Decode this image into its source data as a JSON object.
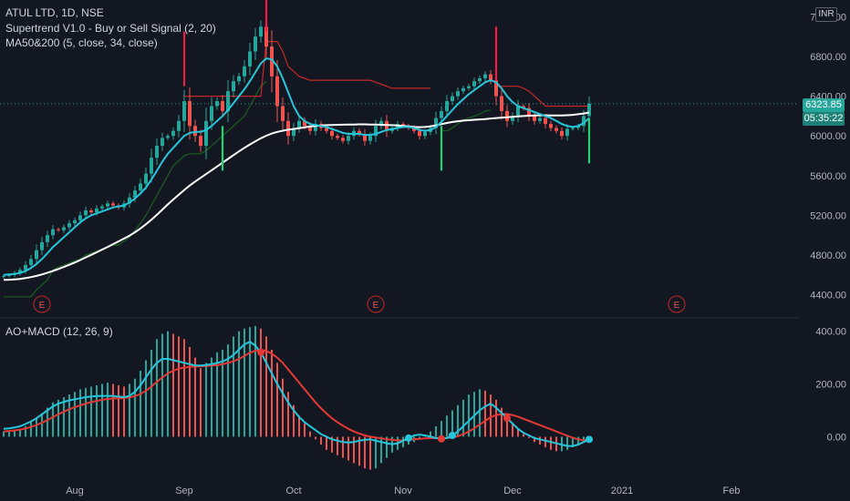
{
  "header": {
    "symbol": "ATUL LTD, 1D, NSE",
    "indicator1": "Supertrend V1.0 - Buy or Sell Signal (2, 20)",
    "indicator2": "MA50&200 (5, close, 34, close)",
    "currency": "INR"
  },
  "lower_pane": {
    "indicator": "AO+MACD (12, 26, 9)"
  },
  "price_tags": {
    "last_price": "6323.85",
    "countdown": "05:35:22"
  },
  "colors": {
    "background": "#131722",
    "up": "#26a69a",
    "down": "#ef5350",
    "ma_fast": "#26c6da",
    "ma_slow": "#ffffff",
    "supertrend_up": "#1b5e20",
    "supertrend_down": "#c62828",
    "signal_buy": "#00e676",
    "signal_sell": "#ff1744"
  },
  "chart_data": [
    {
      "type": "candlestick",
      "x_labels": [
        "Aug",
        "Sep",
        "Oct",
        "Nov",
        "Dec",
        "2021",
        "Feb"
      ],
      "y_ticks": [
        4400,
        4800,
        5200,
        5600,
        6000,
        6400,
        6800,
        7200
      ],
      "ylim": [
        4250,
        7350
      ],
      "earnings_markers": [
        "E",
        "E",
        "E"
      ],
      "grid": false,
      "series": [
        {
          "name": "close",
          "values": [
            4590,
            4600,
            4620,
            4650,
            4700,
            4760,
            4850,
            4930,
            5000,
            5060,
            5050,
            5080,
            5120,
            5150,
            5200,
            5250,
            5230,
            5270,
            5290,
            5320,
            5300,
            5280,
            5320,
            5380,
            5450,
            5520,
            5620,
            5780,
            5900,
            5980,
            6000,
            6050,
            6150,
            6350,
            6100,
            6000,
            5900,
            6150,
            6300,
            6350,
            6250,
            6450,
            6550,
            6600,
            6700,
            6850,
            7000,
            7100,
            6900,
            6600,
            6300,
            6150,
            6000,
            6080,
            6150,
            6100,
            6050,
            6120,
            6080,
            6050,
            6000,
            5980,
            5950,
            6000,
            6050,
            6020,
            5950,
            6000,
            6100,
            6150,
            6050,
            6080,
            6120,
            6100,
            6080,
            6050,
            6000,
            6040,
            6080,
            6180,
            6250,
            6350,
            6400,
            6450,
            6480,
            6500,
            6550,
            6580,
            6620,
            6560,
            6400,
            6250,
            6150,
            6200,
            6300,
            6280,
            6200,
            6150,
            6180,
            6120,
            6080,
            6050,
            6000,
            6070,
            6080,
            6100,
            6200,
            6323.85
          ]
        },
        {
          "name": "MA50",
          "values": [
            4600,
            4605,
            4610,
            4620,
            4640,
            4670,
            4710,
            4760,
            4820,
            4880,
            4930,
            4980,
            5030,
            5080,
            5130,
            5170,
            5200,
            5220,
            5240,
            5260,
            5280,
            5290,
            5300,
            5330,
            5370,
            5420,
            5480,
            5560,
            5650,
            5740,
            5820,
            5880,
            5940,
            6000,
            6030,
            6040,
            6040,
            6060,
            6100,
            6150,
            6200,
            6260,
            6330,
            6400,
            6470,
            6550,
            6640,
            6730,
            6780,
            6770,
            6700,
            6580,
            6440,
            6300,
            6200,
            6150,
            6120,
            6110,
            6100,
            6090,
            6070,
            6050,
            6030,
            6020,
            6020,
            6020,
            6010,
            6010,
            6020,
            6040,
            6060,
            6070,
            6080,
            6090,
            6090,
            6080,
            6060,
            6050,
            6060,
            6090,
            6140,
            6200,
            6260,
            6320,
            6370,
            6420,
            6460,
            6500,
            6540,
            6560,
            6540,
            6480,
            6400,
            6340,
            6300,
            6280,
            6260,
            6240,
            6220,
            6200,
            6180,
            6150,
            6120,
            6100,
            6090,
            6100,
            6130,
            6180
          ]
        },
        {
          "name": "MA200",
          "values": [
            4550,
            4552,
            4555,
            4560,
            4568,
            4578,
            4590,
            4605,
            4622,
            4640,
            4660,
            4680,
            4702,
            4725,
            4750,
            4776,
            4802,
            4828,
            4855,
            4882,
            4910,
            4938,
            4966,
            4996,
            5030,
            5068,
            5110,
            5156,
            5206,
            5258,
            5310,
            5360,
            5408,
            5455,
            5500,
            5540,
            5578,
            5616,
            5654,
            5692,
            5730,
            5768,
            5806,
            5844,
            5880,
            5914,
            5946,
            5976,
            6002,
            6024,
            6040,
            6052,
            6062,
            6070,
            6078,
            6086,
            6094,
            6100,
            6105,
            6108,
            6110,
            6112,
            6113,
            6114,
            6115,
            6116,
            6116,
            6115,
            6114,
            6112,
            6110,
            6108,
            6105,
            6100,
            6095,
            6090,
            6088,
            6090,
            6096,
            6106,
            6118,
            6130,
            6140,
            6148,
            6154,
            6158,
            6162,
            6166,
            6170,
            6175,
            6180,
            6184,
            6188,
            6192,
            6196,
            6200,
            6204,
            6206,
            6207,
            6207,
            6206,
            6205,
            6205,
            6208,
            6212,
            6218,
            6226,
            6236
          ]
        },
        {
          "name": "supertrend_lower",
          "values": [
            4380,
            4380,
            4380,
            4380,
            4380,
            4380,
            4450,
            4500,
            4550,
            4650,
            4680,
            4700,
            4720,
            4740,
            4760,
            4800,
            4820,
            4840,
            4860,
            4880,
            4900,
            4900,
            4940,
            4980,
            5050,
            5120,
            5200,
            5300,
            5400,
            5500,
            5600,
            5700,
            5750,
            5800,
            5820,
            5820,
            5820,
            5850,
            5900,
            5950,
            6000,
            6050,
            6100,
            6150,
            6200,
            6300,
            6400,
            6500,
            6550,
            null,
            null,
            null,
            null,
            null,
            null,
            null,
            null,
            null,
            null,
            null,
            null,
            null,
            null,
            null,
            null,
            null,
            null,
            null,
            null,
            null,
            null,
            null,
            null,
            null,
            null,
            null,
            null,
            null,
            null,
            null,
            6050,
            6050,
            6080,
            6120,
            6160,
            6180,
            6200,
            6220,
            6250,
            6260,
            null,
            null,
            null,
            null,
            null,
            null,
            null,
            null,
            null,
            null,
            null,
            null,
            null,
            null,
            null,
            null,
            null,
            null
          ]
        },
        {
          "name": "supertrend_upper",
          "values": [
            null,
            null,
            null,
            null,
            null,
            null,
            null,
            null,
            null,
            null,
            null,
            null,
            null,
            null,
            null,
            null,
            null,
            null,
            null,
            null,
            null,
            null,
            null,
            null,
            null,
            null,
            null,
            null,
            null,
            null,
            null,
            null,
            null,
            6400,
            6400,
            6400,
            6400,
            6400,
            6400,
            6400,
            6400,
            6400,
            6400,
            6400,
            6400,
            6400,
            6400,
            6400,
            6950,
            6950,
            6950,
            6850,
            6700,
            6650,
            6600,
            6580,
            6560,
            6560,
            6560,
            6560,
            6560,
            6560,
            6560,
            6560,
            6560,
            6560,
            6560,
            6560,
            6540,
            6520,
            6500,
            6480,
            6480,
            6480,
            6480,
            6480,
            6480,
            6480,
            6480,
            null,
            null,
            null,
            null,
            null,
            null,
            null,
            null,
            null,
            null,
            null,
            6500,
            6500,
            6500,
            6500,
            6500,
            6480,
            6450,
            6400,
            6350,
            6300,
            6300,
            6300,
            6300,
            6300,
            6300,
            6300,
            6300,
            6300
          ]
        }
      ],
      "signals": [
        {
          "type": "sell",
          "index": 33
        },
        {
          "type": "buy",
          "index": 40
        },
        {
          "type": "sell",
          "index": 48
        },
        {
          "type": "buy",
          "index": 80
        },
        {
          "type": "sell",
          "index": 90
        },
        {
          "type": "buy",
          "index": 107
        }
      ]
    },
    {
      "type": "bar+line",
      "y_ticks": [
        0,
        200,
        400
      ],
      "ylim": [
        -140,
        440
      ],
      "series": [
        {
          "name": "AO",
          "values": [
            20,
            22,
            25,
            30,
            40,
            55,
            70,
            90,
            110,
            130,
            140,
            150,
            160,
            170,
            180,
            185,
            190,
            195,
            200,
            205,
            200,
            195,
            190,
            200,
            220,
            250,
            290,
            330,
            370,
            390,
            400,
            390,
            380,
            370,
            340,
            300,
            260,
            280,
            300,
            320,
            330,
            350,
            380,
            400,
            410,
            415,
            420,
            410,
            380,
            330,
            280,
            220,
            170,
            120,
            80,
            50,
            20,
            -10,
            -30,
            -50,
            -60,
            -70,
            -80,
            -90,
            -100,
            -110,
            -120,
            -125,
            -120,
            -100,
            -80,
            -60,
            -50,
            -40,
            -30,
            -20,
            -10,
            5,
            20,
            40,
            60,
            80,
            100,
            120,
            140,
            160,
            170,
            180,
            175,
            160,
            140,
            110,
            80,
            50,
            30,
            10,
            -5,
            -20,
            -30,
            -40,
            -50,
            -55,
            -55,
            -50,
            -40,
            -30,
            -15,
            0
          ]
        },
        {
          "name": "MACD",
          "values": [
            30,
            32,
            35,
            40,
            48,
            58,
            70,
            85,
            100,
            115,
            125,
            132,
            138,
            142,
            146,
            150,
            152,
            154,
            155,
            155,
            154,
            152,
            150,
            155,
            170,
            195,
            225,
            255,
            280,
            295,
            295,
            290,
            285,
            280,
            275,
            270,
            270,
            272,
            275,
            280,
            285,
            295,
            310,
            330,
            350,
            360,
            345,
            320,
            280,
            240,
            200,
            165,
            130,
            100,
            75,
            55,
            40,
            25,
            10,
            0,
            -10,
            -15,
            -20,
            -22,
            -20,
            -15,
            -12,
            -10,
            -15,
            -20,
            -25,
            -28,
            -25,
            -15,
            -5,
            5,
            8,
            5,
            0,
            -5,
            -8,
            -5,
            5,
            20,
            40,
            60,
            80,
            100,
            115,
            125,
            110,
            90,
            70,
            50,
            30,
            15,
            5,
            -5,
            -10,
            -15,
            -20,
            -25,
            -30,
            -35,
            -35,
            -30,
            -20,
            -10
          ]
        },
        {
          "name": "signal",
          "values": [
            20,
            22,
            24,
            27,
            31,
            37,
            44,
            53,
            63,
            74,
            85,
            95,
            104,
            112,
            119,
            126,
            131,
            136,
            140,
            143,
            145,
            146,
            147,
            149,
            154,
            162,
            174,
            190,
            208,
            225,
            240,
            250,
            258,
            262,
            265,
            266,
            267,
            268,
            270,
            272,
            275,
            280,
            286,
            295,
            306,
            318,
            326,
            330,
            325,
            315,
            300,
            280,
            255,
            230,
            205,
            180,
            155,
            130,
            108,
            88,
            70,
            55,
            42,
            30,
            20,
            12,
            5,
            0,
            -3,
            -6,
            -9,
            -12,
            -14,
            -14,
            -12,
            -10,
            -8,
            -6,
            -5,
            -5,
            -5,
            -5,
            -3,
            2,
            10,
            20,
            32,
            46,
            60,
            74,
            82,
            86,
            86,
            82,
            76,
            68,
            60,
            52,
            44,
            36,
            28,
            20,
            12,
            4,
            -4,
            -10,
            -14,
            -14
          ]
        }
      ]
    }
  ]
}
